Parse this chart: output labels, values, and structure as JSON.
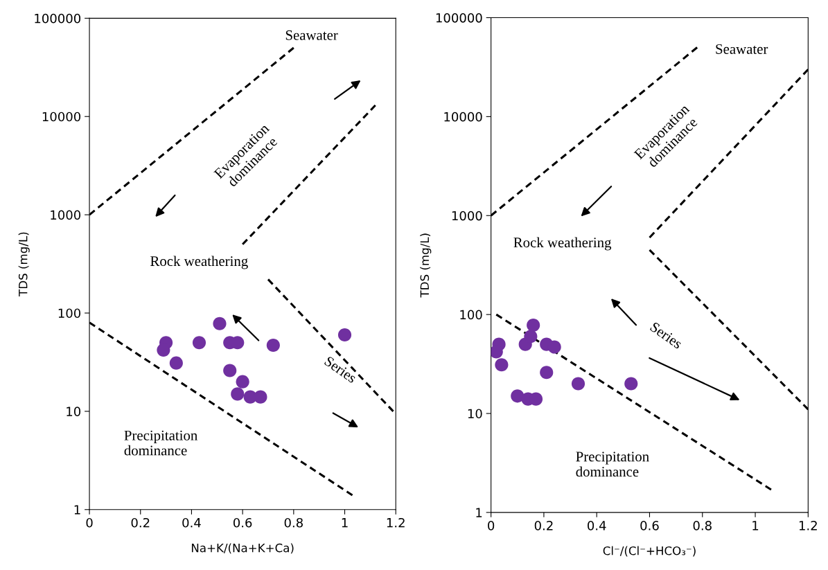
{
  "chart_data": [
    {
      "type": "scatter",
      "xlabel": "Na+K/(Na+K+Ca)",
      "ylabel": "TDS (mg/L)",
      "log": "y",
      "xlim": [
        0,
        1.2
      ],
      "ylim": [
        1,
        100000
      ],
      "xticks": [
        0,
        0.2,
        0.4,
        0.6,
        0.8,
        1,
        1.2
      ],
      "yticks": [
        1,
        10,
        100,
        1000,
        10000,
        100000
      ],
      "grid": false,
      "series": [
        {
          "marker": "circle",
          "color": "#7030a0",
          "x": [
            0.3,
            0.29,
            0.34,
            0.43,
            0.51,
            0.55,
            0.58,
            0.55,
            0.6,
            0.58,
            0.63,
            0.67,
            0.72,
            1.0
          ],
          "values": [
            50,
            42,
            31,
            50,
            78,
            50,
            50,
            26,
            20,
            15,
            14,
            14,
            47,
            60
          ]
        },
        {
          "type": "line",
          "marker": "none",
          "line_style": "dashed",
          "color": "#000000",
          "x": [
            0,
            0.8
          ],
          "values": [
            1000,
            50000
          ]
        },
        {
          "type": "line",
          "marker": "none",
          "line_style": "dashed",
          "color": "#000000",
          "x": [
            0.6,
            1.12
          ],
          "values": [
            500,
            13000
          ]
        },
        {
          "type": "line",
          "marker": "none",
          "line_style": "dashed",
          "color": "#000000",
          "x": [
            0.7,
            1.19
          ],
          "values": [
            220,
            10
          ]
        },
        {
          "type": "line",
          "marker": "none",
          "line_style": "dashed",
          "color": "#000000",
          "x": [
            0,
            1.03
          ],
          "values": [
            80,
            1.4
          ]
        }
      ],
      "annotations": [
        "Seawater",
        "Evaporation\ndominance",
        "Rock weathering",
        "Series",
        "Precipitation\ndominance"
      ]
    },
    {
      "type": "scatter",
      "xlabel": "Cl⁻/(Cl⁻+HCO₃⁻)",
      "ylabel": "TDS (mg/L)",
      "log": "y",
      "xlim": [
        0,
        1.2
      ],
      "ylim": [
        1,
        100000
      ],
      "xticks": [
        0,
        0.2,
        0.4,
        0.6,
        0.8,
        1,
        1.2
      ],
      "yticks": [
        1,
        10,
        100,
        1000,
        10000,
        100000
      ],
      "grid": false,
      "series": [
        {
          "marker": "circle",
          "color": "#7030a0",
          "x": [
            0.03,
            0.02,
            0.04,
            0.13,
            0.16,
            0.15,
            0.21,
            0.24,
            0.21,
            0.33,
            0.53,
            0.1,
            0.14,
            0.17
          ],
          "values": [
            50,
            42,
            31,
            50,
            78,
            60,
            50,
            47,
            26,
            20,
            20,
            15,
            14,
            14
          ]
        },
        {
          "type": "line",
          "marker": "none",
          "line_style": "dashed",
          "color": "#000000",
          "x": [
            0,
            0.78
          ],
          "values": [
            1000,
            50000
          ]
        },
        {
          "type": "line",
          "marker": "none",
          "line_style": "dashed",
          "color": "#000000",
          "x": [
            0.6,
            1.2
          ],
          "values": [
            600,
            30000
          ]
        },
        {
          "type": "line",
          "marker": "none",
          "line_style": "dashed",
          "color": "#000000",
          "x": [
            0.6,
            1.2
          ],
          "values": [
            450,
            11
          ]
        },
        {
          "type": "line",
          "marker": "none",
          "line_style": "dashed",
          "color": "#000000",
          "x": [
            0.02,
            1.06
          ],
          "values": [
            100,
            1.7
          ]
        }
      ],
      "annotations": [
        "Seawater",
        "Evaporation\ndominance",
        "Rock weathering",
        "Series",
        "Precipitation\ndominance"
      ]
    }
  ]
}
